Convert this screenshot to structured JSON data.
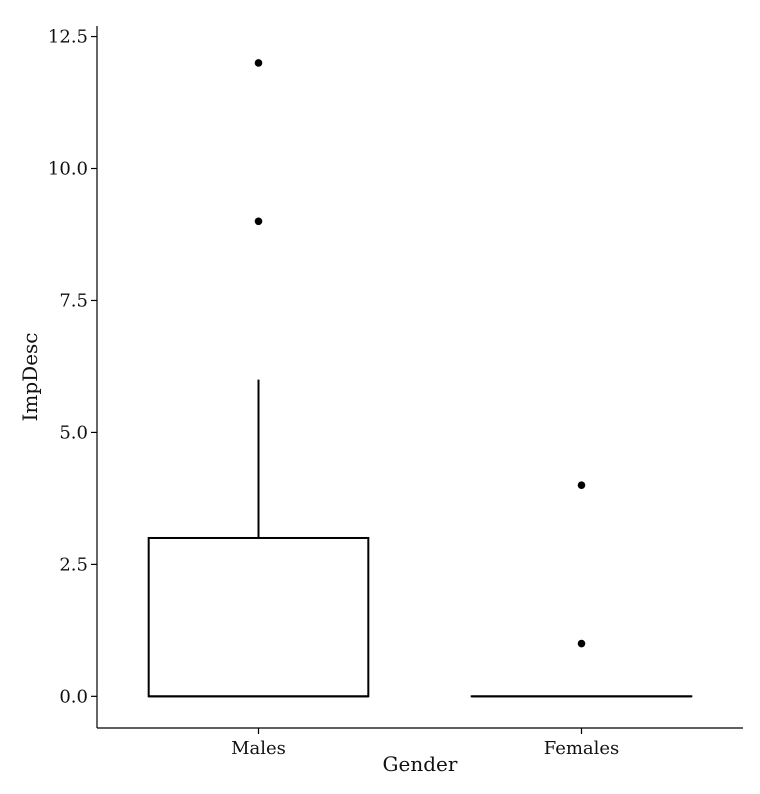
{
  "chart_data": {
    "type": "boxplot",
    "title": "",
    "xlabel": "Gender",
    "ylabel": "ImpDesc",
    "categories": [
      "Males",
      "Females"
    ],
    "ylim": [
      -0.6,
      12.7
    ],
    "y_ticks": [
      0.0,
      2.5,
      5.0,
      7.5,
      10.0,
      12.5
    ],
    "y_tick_labels": [
      "0.0",
      "2.5",
      "5.0",
      "7.5",
      "10.0",
      "12.5"
    ],
    "grid": false,
    "boxes": [
      {
        "category": "Males",
        "q1": 0.0,
        "median": 0.0,
        "q3": 3.0,
        "whisker_low": 0.0,
        "whisker_high": 6.0,
        "outliers": [
          9.0,
          12.0
        ]
      },
      {
        "category": "Females",
        "q1": 0.0,
        "median": 0.0,
        "q3": 0.0,
        "whisker_low": 0.0,
        "whisker_high": 0.0,
        "outliers": [
          1.0,
          4.0
        ]
      }
    ]
  }
}
